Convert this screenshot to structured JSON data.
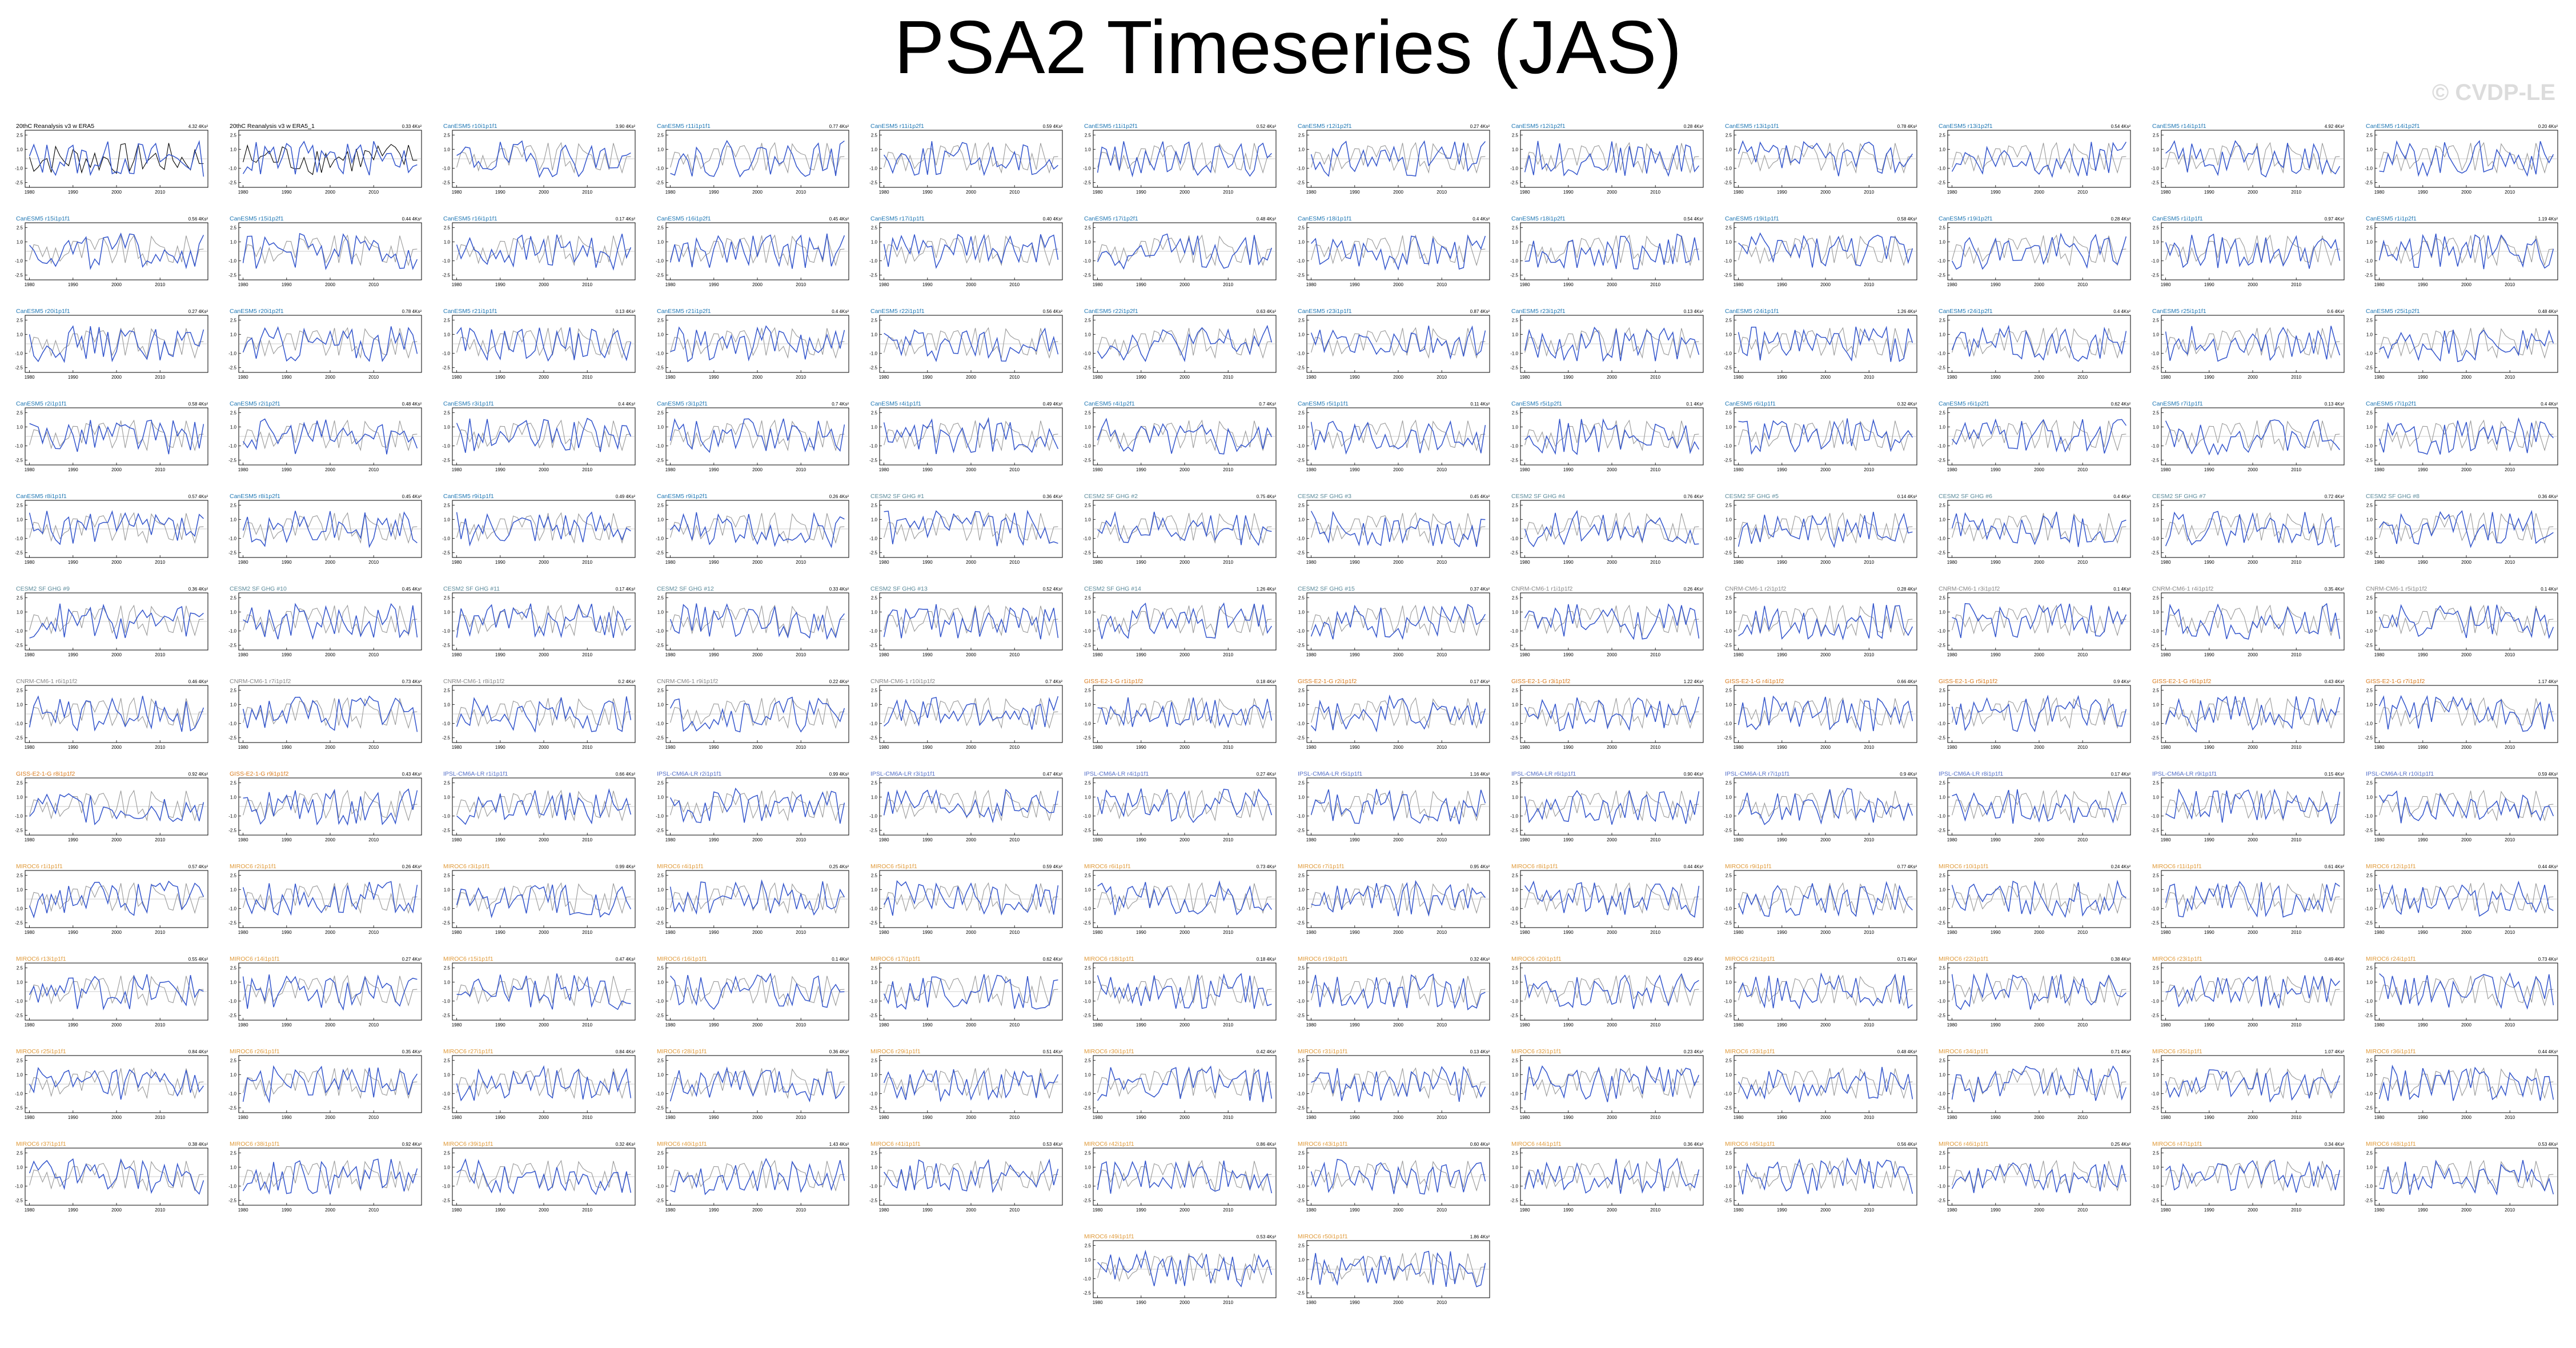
{
  "page": {
    "title": "PSA2 Timeseries (JAS)",
    "watermark": "© CVDP-LE"
  },
  "axis_template": {
    "yticks": [
      "2.5",
      "1.0",
      "-1.0",
      "-2.5"
    ],
    "xticks": [
      "1980",
      "1990",
      "2000",
      "2010"
    ],
    "xlim": [
      1979,
      2021
    ],
    "ylim": [
      -3,
      3
    ]
  },
  "colors": {
    "observed": "#999999",
    "model": "#3355cc",
    "reference": "#000000",
    "title_cesm2": "#1f77b4",
    "title_cesm2_se": "#5a8a9a",
    "title_cnrm": "#888888",
    "title_giss": "#d97a1c",
    "title_ipsl": "#5570c8",
    "title_miroc": "#e09a3a"
  },
  "chart_data": {
    "type": "line",
    "panel_count": 146,
    "columns": 12,
    "x": [
      1980,
      1981,
      1982,
      1983,
      1984,
      1985,
      1986,
      1987,
      1988,
      1989,
      1990,
      1991,
      1992,
      1993,
      1994,
      1995,
      1996,
      1997,
      1998,
      1999,
      2000,
      2001,
      2002,
      2003,
      2004,
      2005,
      2006,
      2007,
      2008,
      2009,
      2010,
      2011,
      2012,
      2013,
      2014,
      2015,
      2016,
      2017,
      2018,
      2019,
      2020
    ],
    "panels": [
      {
        "title": "20thC Reanalysis v3 w ERA5",
        "value": "4.32 4Ks²",
        "color": "#000000"
      },
      {
        "title": "20thC Reanalysis v3 w ERA5_1",
        "value": "0.33 4Ks²",
        "color": "#000000"
      },
      {
        "title": "CanESM5 r10i1p1f1",
        "value": "3.90 4Ks²",
        "color": "#1f77b4"
      },
      {
        "title": "CanESM5 r11i1p1f1",
        "value": "0.77 4Ks²",
        "color": "#1f77b4"
      },
      {
        "title": "CanESM5 r11i1p2f1",
        "value": "0.59 4Ks²",
        "color": "#1f77b4"
      },
      {
        "title": "CanESM5 r11i1p2f1",
        "value": "0.52 4Ks²",
        "color": "#1f77b4"
      },
      {
        "title": "CanESM5 r12i1p2f1",
        "value": "0.27 4Ks²",
        "color": "#1f77b4"
      },
      {
        "title": "CanESM5 r12i1p2f1",
        "value": "0.28 4Ks²",
        "color": "#1f77b4"
      },
      {
        "title": "CanESM5 r13i1p1f1",
        "value": "0.78 4Ks²",
        "color": "#1f77b4"
      },
      {
        "title": "CanESM5 r13i1p2f1",
        "value": "0.54 4Ks²",
        "color": "#1f77b4"
      },
      {
        "title": "CanESM5 r14i1p1f1",
        "value": "4.92 4Ks²",
        "color": "#1f77b4"
      },
      {
        "title": "CanESM5 r14i1p2f1",
        "value": "0.20 4Ks²",
        "color": "#1f77b4"
      },
      {
        "title": "CanESM5 r15i1p1f1",
        "value": "0.56 4Ks²",
        "color": "#1f77b4"
      },
      {
        "title": "CanESM5 r15i1p2f1",
        "value": "0.44 4Ks²",
        "color": "#1f77b4"
      },
      {
        "title": "CanESM5 r16i1p1f1",
        "value": "0.17 4Ks²",
        "color": "#1f77b4"
      },
      {
        "title": "CanESM5 r16i1p2f1",
        "value": "0.45 4Ks²",
        "color": "#1f77b4"
      },
      {
        "title": "CanESM5 r17i1p1f1",
        "value": "0.40 4Ks²",
        "color": "#1f77b4"
      },
      {
        "title": "CanESM5 r17i1p2f1",
        "value": "0.48 4Ks²",
        "color": "#1f77b4"
      },
      {
        "title": "CanESM5 r18i1p1f1",
        "value": "0.4 4Ks²",
        "color": "#1f77b4"
      },
      {
        "title": "CanESM5 r18i1p2f1",
        "value": "0.54 4Ks²",
        "color": "#1f77b4"
      },
      {
        "title": "CanESM5 r19i1p1f1",
        "value": "0.58 4Ks²",
        "color": "#1f77b4"
      },
      {
        "title": "CanESM5 r19i1p2f1",
        "value": "0.28 4Ks²",
        "color": "#1f77b4"
      },
      {
        "title": "CanESM5 r1i1p1f1",
        "value": "0.97 4Ks²",
        "color": "#1f77b4"
      },
      {
        "title": "CanESM5 r1i1p2f1",
        "value": "1.19 4Ks²",
        "color": "#1f77b4"
      },
      {
        "title": "CanESM5 r20i1p1f1",
        "value": "0.27 4Ks²",
        "color": "#1f77b4"
      },
      {
        "title": "CanESM5 r20i1p2f1",
        "value": "0.78 4Ks²",
        "color": "#1f77b4"
      },
      {
        "title": "CanESM5 r21i1p1f1",
        "value": "0.13 4Ks²",
        "color": "#1f77b4"
      },
      {
        "title": "CanESM5 r21i1p2f1",
        "value": "0.4 4Ks²",
        "color": "#1f77b4"
      },
      {
        "title": "CanESM5 r22i1p1f1",
        "value": "0.56 4Ks²",
        "color": "#1f77b4"
      },
      {
        "title": "CanESM5 r22i1p2f1",
        "value": "0.63 4Ks²",
        "color": "#1f77b4"
      },
      {
        "title": "CanESM5 r23i1p1f1",
        "value": "0.87 4Ks²",
        "color": "#1f77b4"
      },
      {
        "title": "CanESM5 r23i1p2f1",
        "value": "0.13 4Ks²",
        "color": "#1f77b4"
      },
      {
        "title": "CanESM5 r24i1p1f1",
        "value": "1.26 4Ks²",
        "color": "#1f77b4"
      },
      {
        "title": "CanESM5 r24i1p2f1",
        "value": "0.4 4Ks²",
        "color": "#1f77b4"
      },
      {
        "title": "CanESM5 r25i1p1f1",
        "value": "0.6 4Ks²",
        "color": "#1f77b4"
      },
      {
        "title": "CanESM5 r25i1p2f1",
        "value": "0.48 4Ks²",
        "color": "#1f77b4"
      },
      {
        "title": "CanESM5 r2i1p1f1",
        "value": "0.58 4Ks²",
        "color": "#1f77b4"
      },
      {
        "title": "CanESM5 r2i1p2f1",
        "value": "0.48 4Ks²",
        "color": "#1f77b4"
      },
      {
        "title": "CanESM5 r3i1p1f1",
        "value": "0.4 4Ks²",
        "color": "#1f77b4"
      },
      {
        "title": "CanESM5 r3i1p2f1",
        "value": "0.7 4Ks²",
        "color": "#1f77b4"
      },
      {
        "title": "CanESM5 r4i1p1f1",
        "value": "0.49 4Ks²",
        "color": "#1f77b4"
      },
      {
        "title": "CanESM5 r4i1p2f1",
        "value": "0.7 4Ks²",
        "color": "#1f77b4"
      },
      {
        "title": "CanESM5 r5i1p1f1",
        "value": "0.11 4Ks²",
        "color": "#1f77b4"
      },
      {
        "title": "CanESM5 r5i1p2f1",
        "value": "0.1 4Ks²",
        "color": "#1f77b4"
      },
      {
        "title": "CanESM5 r6i1p1f1",
        "value": "0.32 4Ks²",
        "color": "#1f77b4"
      },
      {
        "title": "CanESM5 r6i1p2f1",
        "value": "0.62 4Ks²",
        "color": "#1f77b4"
      },
      {
        "title": "CanESM5 r7i1p1f1",
        "value": "0.13 4Ks²",
        "color": "#1f77b4"
      },
      {
        "title": "CanESM5 r7i1p2f1",
        "value": "0.4 4Ks²",
        "color": "#1f77b4"
      },
      {
        "title": "CanESM5 r8i1p1f1",
        "value": "0.57 4Ks²",
        "color": "#1f77b4"
      },
      {
        "title": "CanESM5 r8i1p2f1",
        "value": "0.45 4Ks²",
        "color": "#1f77b4"
      },
      {
        "title": "CanESM5 r9i1p1f1",
        "value": "0.49 4Ks²",
        "color": "#1f77b4"
      },
      {
        "title": "CanESM5 r9i1p2f1",
        "value": "0.26 4Ks²",
        "color": "#1f77b4"
      },
      {
        "title": "CESM2 SF GHG #1",
        "value": "0.36 4Ks²",
        "color": "#5a8a9a"
      },
      {
        "title": "CESM2 SF GHG #2",
        "value": "0.75 4Ks²",
        "color": "#5a8a9a"
      },
      {
        "title": "CESM2 SF GHG #3",
        "value": "0.45 4Ks²",
        "color": "#5a8a9a"
      },
      {
        "title": "CESM2 SF GHG #4",
        "value": "0.76 4Ks²",
        "color": "#5a8a9a"
      },
      {
        "title": "CESM2 SF GHG #5",
        "value": "0.14 4Ks²",
        "color": "#5a8a9a"
      },
      {
        "title": "CESM2 SF GHG #6",
        "value": "0.4 4Ks²",
        "color": "#5a8a9a"
      },
      {
        "title": "CESM2 SF GHG #7",
        "value": "0.72 4Ks²",
        "color": "#5a8a9a"
      },
      {
        "title": "CESM2 SF GHG #8",
        "value": "0.36 4Ks²",
        "color": "#5a8a9a"
      },
      {
        "title": "CESM2 SF GHG #9",
        "value": "0.36 4Ks²",
        "color": "#5a8a9a"
      },
      {
        "title": "CESM2 SF GHG #10",
        "value": "0.45 4Ks²",
        "color": "#5a8a9a"
      },
      {
        "title": "CESM2 SF GHG #11",
        "value": "0.17 4Ks²",
        "color": "#5a8a9a"
      },
      {
        "title": "CESM2 SF GHG #12",
        "value": "0.33 4Ks²",
        "color": "#5a8a9a"
      },
      {
        "title": "CESM2 SF GHG #13",
        "value": "0.52 4Ks²",
        "color": "#5a8a9a"
      },
      {
        "title": "CESM2 SF GHG #14",
        "value": "1.26 4Ks²",
        "color": "#5a8a9a"
      },
      {
        "title": "CESM2 SF GHG #15",
        "value": "0.37 4Ks²",
        "color": "#5a8a9a"
      },
      {
        "title": "CNRM-CM6-1 r1i1p1f2",
        "value": "0.26 4Ks²",
        "color": "#888888"
      },
      {
        "title": "CNRM-CM6-1 r2i1p1f2",
        "value": "0.28 4Ks²",
        "color": "#888888"
      },
      {
        "title": "CNRM-CM6-1 r3i1p1f2",
        "value": "0.1 4Ks²",
        "color": "#888888"
      },
      {
        "title": "CNRM-CM6-1 r4i1p1f2",
        "value": "0.35 4Ks²",
        "color": "#888888"
      },
      {
        "title": "CNRM-CM6-1 r5i1p1f2",
        "value": "0.1 4Ks²",
        "color": "#888888"
      },
      {
        "title": "CNRM-CM6-1 r6i1p1f2",
        "value": "0.46 4Ks²",
        "color": "#888888"
      },
      {
        "title": "CNRM-CM6-1 r7i1p1f2",
        "value": "0.73 4Ks²",
        "color": "#888888"
      },
      {
        "title": "CNRM-CM6-1 r8i1p1f2",
        "value": "0.2 4Ks²",
        "color": "#888888"
      },
      {
        "title": "CNRM-CM6-1 r9i1p1f2",
        "value": "0.22 4Ks²",
        "color": "#888888"
      },
      {
        "title": "CNRM-CM6-1 r10i1p1f2",
        "value": "0.7 4Ks²",
        "color": "#888888"
      },
      {
        "title": "GISS-E2-1-G r1i1p1f2",
        "value": "0.18 4Ks²",
        "color": "#d97a1c"
      },
      {
        "title": "GISS-E2-1-G r2i1p1f2",
        "value": "0.17 4Ks²",
        "color": "#d97a1c"
      },
      {
        "title": "GISS-E2-1-G r3i1p1f2",
        "value": "1.22 4Ks²",
        "color": "#d97a1c"
      },
      {
        "title": "GISS-E2-1-G r4i1p1f2",
        "value": "0.66 4Ks²",
        "color": "#d97a1c"
      },
      {
        "title": "GISS-E2-1-G r5i1p1f2",
        "value": "0.9 4Ks²",
        "color": "#d97a1c"
      },
      {
        "title": "GISS-E2-1-G r6i1p1f2",
        "value": "0.43 4Ks²",
        "color": "#d97a1c"
      },
      {
        "title": "GISS-E2-1-G r7i1p1f2",
        "value": "1.17 4Ks²",
        "color": "#d97a1c"
      },
      {
        "title": "GISS-E2-1-G r8i1p1f2",
        "value": "0.92 4Ks²",
        "color": "#d97a1c"
      },
      {
        "title": "GISS-E2-1-G r9i1p1f2",
        "value": "0.43 4Ks²",
        "color": "#d97a1c"
      },
      {
        "title": "IPSL-CM6A-LR r1i1p1f1",
        "value": "0.66 4Ks²",
        "color": "#5570c8"
      },
      {
        "title": "IPSL-CM6A-LR r2i1p1f1",
        "value": "0.99 4Ks²",
        "color": "#5570c8"
      },
      {
        "title": "IPSL-CM6A-LR r3i1p1f1",
        "value": "0.47 4Ks²",
        "color": "#5570c8"
      },
      {
        "title": "IPSL-CM6A-LR r4i1p1f1",
        "value": "0.27 4Ks²",
        "color": "#5570c8"
      },
      {
        "title": "IPSL-CM6A-LR r5i1p1f1",
        "value": "1.16 4Ks²",
        "color": "#5570c8"
      },
      {
        "title": "IPSL-CM6A-LR r6i1p1f1",
        "value": "0.90 4Ks²",
        "color": "#5570c8"
      },
      {
        "title": "IPSL-CM6A-LR r7i1p1f1",
        "value": "0.9 4Ks²",
        "color": "#5570c8"
      },
      {
        "title": "IPSL-CM6A-LR r8i1p1f1",
        "value": "0.17 4Ks²",
        "color": "#5570c8"
      },
      {
        "title": "IPSL-CM6A-LR r9i1p1f1",
        "value": "0.15 4Ks²",
        "color": "#5570c8"
      },
      {
        "title": "IPSL-CM6A-LR r10i1p1f1",
        "value": "0.59 4Ks²",
        "color": "#5570c8"
      },
      {
        "title": "MIROC6 r1i1p1f1",
        "value": "0.57 4Ks²",
        "color": "#e09a3a"
      },
      {
        "title": "MIROC6 r2i1p1f1",
        "value": "0.26 4Ks²",
        "color": "#e09a3a"
      },
      {
        "title": "MIROC6 r3i1p1f1",
        "value": "0.99 4Ks²",
        "color": "#e09a3a"
      },
      {
        "title": "MIROC6 r4i1p1f1",
        "value": "0.25 4Ks²",
        "color": "#e09a3a"
      },
      {
        "title": "MIROC6 r5i1p1f1",
        "value": "0.59 4Ks²",
        "color": "#e09a3a"
      },
      {
        "title": "MIROC6 r6i1p1f1",
        "value": "0.73 4Ks²",
        "color": "#e09a3a"
      },
      {
        "title": "MIROC6 r7i1p1f1",
        "value": "0.95 4Ks²",
        "color": "#e09a3a"
      },
      {
        "title": "MIROC6 r8i1p1f1",
        "value": "0.44 4Ks²",
        "color": "#e09a3a"
      },
      {
        "title": "MIROC6 r9i1p1f1",
        "value": "0.77 4Ks²",
        "color": "#e09a3a"
      },
      {
        "title": "MIROC6 r10i1p1f1",
        "value": "0.24 4Ks²",
        "color": "#e09a3a"
      },
      {
        "title": "MIROC6 r11i1p1f1",
        "value": "0.61 4Ks²",
        "color": "#e09a3a"
      },
      {
        "title": "MIROC6 r12i1p1f1",
        "value": "0.44 4Ks²",
        "color": "#e09a3a"
      },
      {
        "title": "MIROC6 r13i1p1f1",
        "value": "0.55 4Ks²",
        "color": "#e09a3a"
      },
      {
        "title": "MIROC6 r14i1p1f1",
        "value": "0.27 4Ks²",
        "color": "#e09a3a"
      },
      {
        "title": "MIROC6 r15i1p1f1",
        "value": "0.47 4Ks²",
        "color": "#e09a3a"
      },
      {
        "title": "MIROC6 r16i1p1f1",
        "value": "0.1 4Ks²",
        "color": "#e09a3a"
      },
      {
        "title": "MIROC6 r17i1p1f1",
        "value": "0.62 4Ks²",
        "color": "#e09a3a"
      },
      {
        "title": "MIROC6 r18i1p1f1",
        "value": "0.18 4Ks²",
        "color": "#e09a3a"
      },
      {
        "title": "MIROC6 r19i1p1f1",
        "value": "0.32 4Ks²",
        "color": "#e09a3a"
      },
      {
        "title": "MIROC6 r20i1p1f1",
        "value": "0.29 4Ks²",
        "color": "#e09a3a"
      },
      {
        "title": "MIROC6 r21i1p1f1",
        "value": "0.71 4Ks²",
        "color": "#e09a3a"
      },
      {
        "title": "MIROC6 r22i1p1f1",
        "value": "0.38 4Ks²",
        "color": "#e09a3a"
      },
      {
        "title": "MIROC6 r23i1p1f1",
        "value": "0.49 4Ks²",
        "color": "#e09a3a"
      },
      {
        "title": "MIROC6 r24i1p1f1",
        "value": "0.73 4Ks²",
        "color": "#e09a3a"
      },
      {
        "title": "MIROC6 r25i1p1f1",
        "value": "0.84 4Ks²",
        "color": "#e09a3a"
      },
      {
        "title": "MIROC6 r26i1p1f1",
        "value": "0.35 4Ks²",
        "color": "#e09a3a"
      },
      {
        "title": "MIROC6 r27i1p1f1",
        "value": "0.84 4Ks²",
        "color": "#e09a3a"
      },
      {
        "title": "MIROC6 r28i1p1f1",
        "value": "0.36 4Ks²",
        "color": "#e09a3a"
      },
      {
        "title": "MIROC6 r29i1p1f1",
        "value": "0.51 4Ks²",
        "color": "#e09a3a"
      },
      {
        "title": "MIROC6 r30i1p1f1",
        "value": "0.42 4Ks²",
        "color": "#e09a3a"
      },
      {
        "title": "MIROC6 r31i1p1f1",
        "value": "0.13 4Ks²",
        "color": "#e09a3a"
      },
      {
        "title": "MIROC6 r32i1p1f1",
        "value": "0.23 4Ks²",
        "color": "#e09a3a"
      },
      {
        "title": "MIROC6 r33i1p1f1",
        "value": "0.48 4Ks²",
        "color": "#e09a3a"
      },
      {
        "title": "MIROC6 r34i1p1f1",
        "value": "0.71 4Ks²",
        "color": "#e09a3a"
      },
      {
        "title": "MIROC6 r35i1p1f1",
        "value": "1.07 4Ks²",
        "color": "#e09a3a"
      },
      {
        "title": "MIROC6 r36i1p1f1",
        "value": "0.44 4Ks²",
        "color": "#e09a3a"
      },
      {
        "title": "MIROC6 r37i1p1f1",
        "value": "0.38 4Ks²",
        "color": "#e09a3a"
      },
      {
        "title": "MIROC6 r38i1p1f1",
        "value": "0.92 4Ks²",
        "color": "#e09a3a"
      },
      {
        "title": "MIROC6 r39i1p1f1",
        "value": "0.32 4Ks²",
        "color": "#e09a3a"
      },
      {
        "title": "MIROC6 r40i1p1f1",
        "value": "1.43 4Ks²",
        "color": "#e09a3a"
      },
      {
        "title": "MIROC6 r41i1p1f1",
        "value": "0.53 4Ks²",
        "color": "#e09a3a"
      },
      {
        "title": "MIROC6 r42i1p1f1",
        "value": "0.86 4Ks²",
        "color": "#e09a3a"
      },
      {
        "title": "MIROC6 r43i1p1f1",
        "value": "0.60 4Ks²",
        "color": "#e09a3a"
      },
      {
        "title": "MIROC6 r44i1p1f1",
        "value": "0.36 4Ks²",
        "color": "#e09a3a"
      },
      {
        "title": "MIROC6 r45i1p1f1",
        "value": "0.56 4Ks²",
        "color": "#e09a3a"
      },
      {
        "title": "MIROC6 r46i1p1f1",
        "value": "0.25 4Ks²",
        "color": "#e09a3a"
      },
      {
        "title": "MIROC6 r47i1p1f1",
        "value": "0.34 4Ks²",
        "color": "#e09a3a"
      },
      {
        "title": "MIROC6 r48i1p1f1",
        "value": "0.53 4Ks²",
        "color": "#e09a3a"
      },
      {
        "title": "MIROC6 r49i1p1f1",
        "value": "0.53 4Ks²",
        "color": "#e09a3a"
      },
      {
        "title": "MIROC6 r50i1p1f1",
        "value": "1.86 4Ks²",
        "color": "#e09a3a"
      }
    ]
  }
}
